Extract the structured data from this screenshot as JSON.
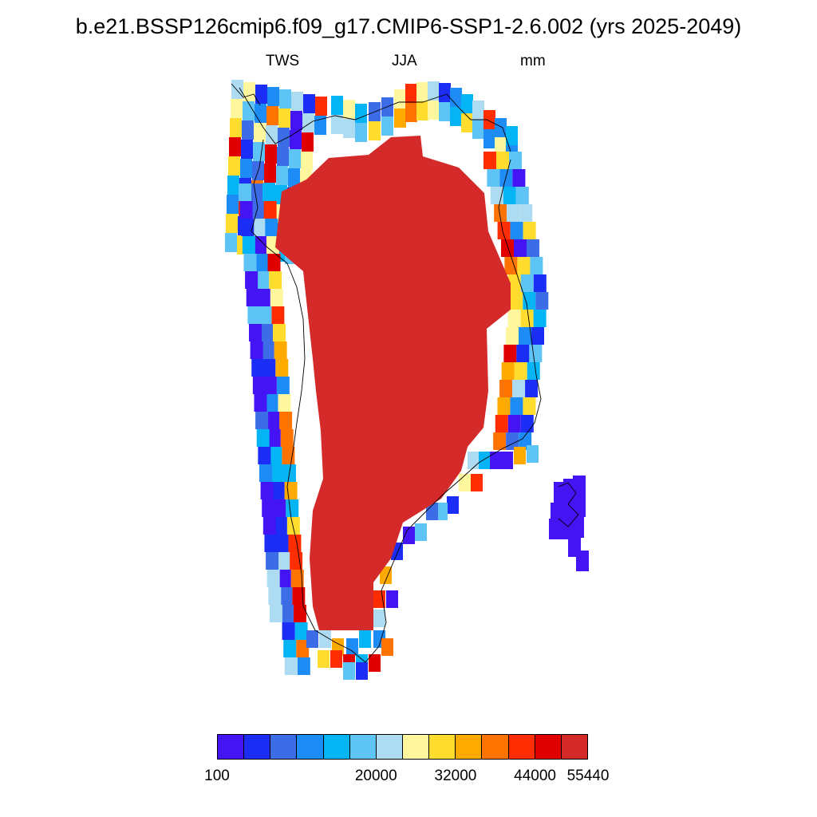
{
  "title": "b.e21.BSSP126cmip6.f09_g17.CMIP6-SSP1-2.6.002 (yrs 2025-2049)",
  "subtitle_left": "TWS",
  "subtitle_center": "JJA",
  "subtitle_right": "mm",
  "colorbar": {
    "colors": [
      "#4414f5",
      "#1c2ef5",
      "#3c6ce6",
      "#1e8cf5",
      "#05b4f5",
      "#5ec4f5",
      "#addcf2",
      "#fff79e",
      "#ffdc2d",
      "#ffaa00",
      "#ff7300",
      "#ff2d00",
      "#e10000",
      "#d42a2a"
    ],
    "labels": [
      {
        "text": "100",
        "boundary": 0
      },
      {
        "text": "20000",
        "boundary": 6
      },
      {
        "text": "32000",
        "boundary": 9
      },
      {
        "text": "44000",
        "boundary": 12
      },
      {
        "text": "55440",
        "boundary": 14
      }
    ]
  },
  "map": {
    "region": "Greenland",
    "ice_sheet_color": "#d42a2a",
    "coast_color": "#000000"
  }
}
